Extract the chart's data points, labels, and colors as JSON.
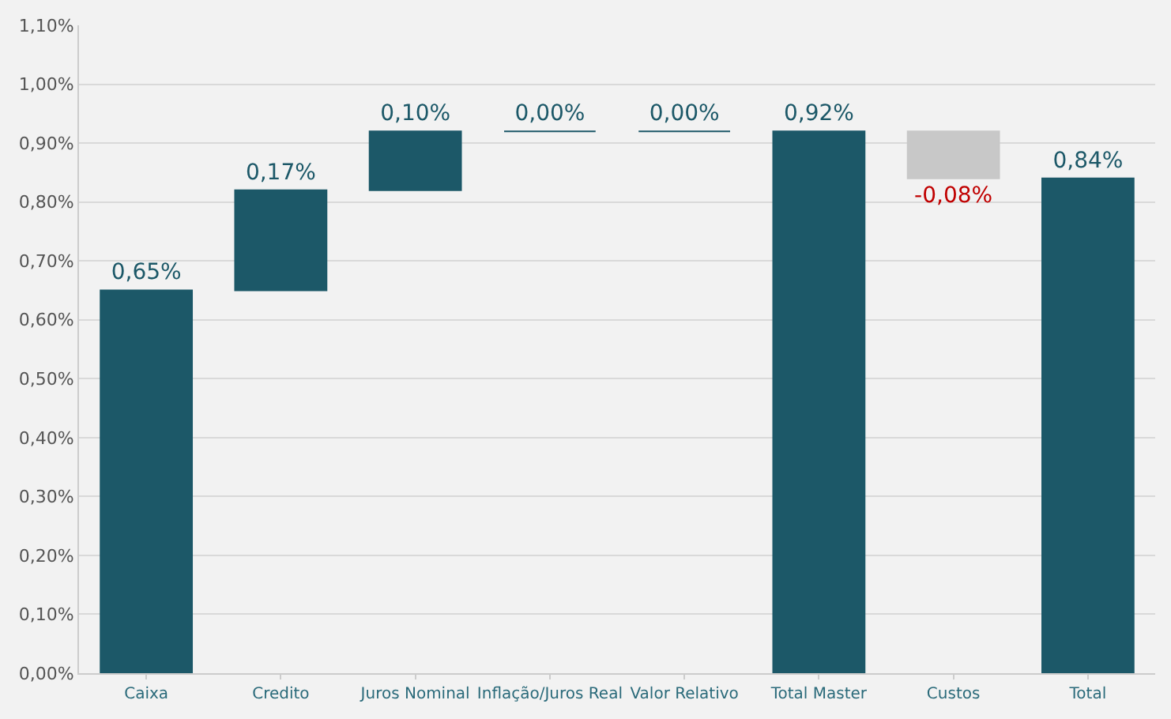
{
  "chart_data": {
    "type": "bar",
    "categories": [
      "Caixa",
      "Credito",
      "Juros Nominal",
      "Inflação/Juros Real",
      "Valor Relativo",
      "Total Master",
      "Custos",
      "Total"
    ],
    "values": [
      0.65,
      0.17,
      0.1,
      0.0,
      0.0,
      0.92,
      -0.08,
      0.84
    ],
    "base": [
      0,
      0.65,
      0.82,
      0.92,
      0.92,
      0,
      0.92,
      0
    ],
    "colors": [
      "#1c5868",
      "#1c5868",
      "#1c5868",
      "#1c5868",
      "#1c5868",
      "#1c5868",
      "#c8c8c8",
      "#1c5868"
    ],
    "value_labels": [
      "0,65%",
      "0,17%",
      "0,10%",
      "0,00%",
      "0,00%",
      "0,92%",
      "-0,08%",
      "0,84%"
    ],
    "ylim": [
      0,
      1.1
    ],
    "yticks": [
      {
        "value": 0,
        "label": "0,00%"
      },
      {
        "value": 0.1,
        "label": "0,10%"
      },
      {
        "value": 0.2,
        "label": "0,20%"
      },
      {
        "value": 0.3,
        "label": "0,30%"
      },
      {
        "value": 0.4,
        "label": "0,40%"
      },
      {
        "value": 0.5,
        "label": "0,50%"
      },
      {
        "value": 0.6,
        "label": "0,60%"
      },
      {
        "value": 0.7,
        "label": "0,70%"
      },
      {
        "value": 0.8,
        "label": "0,80%"
      },
      {
        "value": 0.9,
        "label": "0,90%"
      },
      {
        "value": 1.0,
        "label": "1,00%"
      },
      {
        "value": 1.1,
        "label": "1,10%"
      }
    ],
    "grid": "y"
  }
}
